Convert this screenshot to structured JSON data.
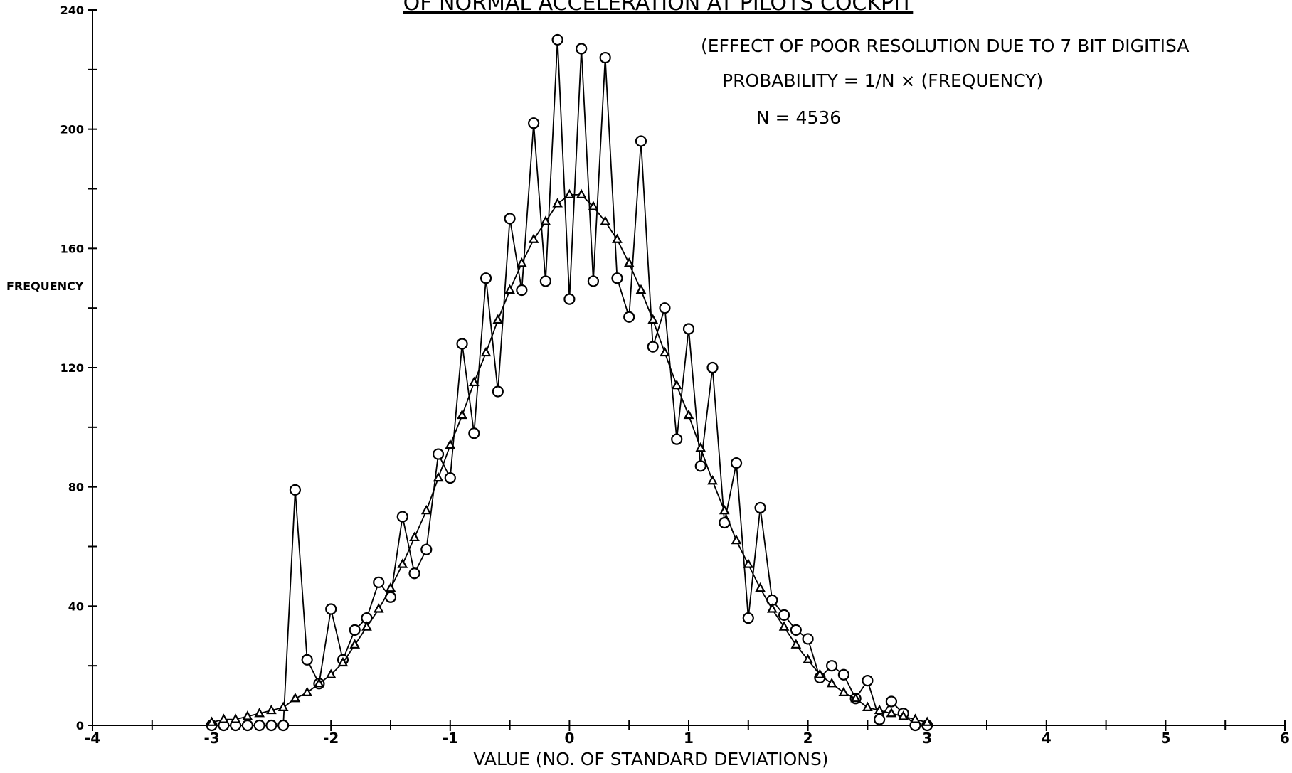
{
  "chart_data": {
    "type": "line",
    "title": "OF NORMAL ACCELERATION AT PILOTS COCKPIT",
    "annotations": [
      "(EFFECT OF POOR RESOLUTION DUE TO 7 BIT DIGITISA",
      "PROBABILITY = 1/N × (FREQUENCY)",
      "N = 4536"
    ],
    "xlabel": "VALUE  (NO. OF STANDARD DEVIATIONS)",
    "ylabel": "FREQUENCY",
    "x": [
      -3,
      -2.9,
      -2.8,
      -2.7,
      -2.6,
      -2.5,
      -2.4,
      -2.3,
      -2.2,
      -2.1,
      -2,
      -1.9,
      -1.8,
      -1.7,
      -1.6,
      -1.5,
      -1.4,
      -1.3,
      -1.2,
      -1.1,
      -1,
      -0.9,
      -0.8,
      -0.7,
      -0.6,
      -0.5,
      -0.4,
      -0.3,
      -0.2,
      -0.1,
      0,
      0.1,
      0.2,
      0.3,
      0.4,
      0.5,
      0.6,
      0.7,
      0.8,
      0.9,
      1,
      1.1,
      1.2,
      1.3,
      1.4,
      1.5,
      1.6,
      1.7,
      1.8,
      1.9,
      2,
      2.1,
      2.2,
      2.3,
      2.4,
      2.5,
      2.6,
      2.7,
      2.8,
      2.9,
      3
    ],
    "series": [
      {
        "marker": "circle",
        "color": "#000000",
        "values": [
          0,
          0,
          0,
          0,
          0,
          0,
          0,
          79,
          22,
          14,
          39,
          22,
          32,
          36,
          48,
          43,
          70,
          51,
          59,
          91,
          83,
          128,
          98,
          150,
          112,
          170,
          146,
          202,
          149,
          230,
          143,
          227,
          149,
          224,
          150,
          137,
          196,
          127,
          140,
          96,
          133,
          87,
          120,
          68,
          88,
          36,
          73,
          42,
          37,
          32,
          29,
          16,
          20,
          17,
          9,
          15,
          2,
          8,
          4,
          0,
          0
        ]
      },
      {
        "marker": "triangle",
        "color": "#000000",
        "values": [
          1,
          2,
          2,
          3,
          4,
          5,
          6,
          9,
          11,
          14,
          17,
          21,
          27,
          33,
          39,
          46,
          54,
          63,
          72,
          83,
          94,
          104,
          115,
          125,
          136,
          146,
          155,
          163,
          169,
          175,
          178,
          178,
          174,
          169,
          163,
          155,
          146,
          136,
          125,
          114,
          104,
          93,
          82,
          72,
          62,
          54,
          46,
          39,
          33,
          27,
          22,
          17,
          14,
          11,
          9,
          6,
          5,
          4,
          3,
          2,
          1
        ]
      }
    ],
    "xlim": [
      -4,
      6
    ],
    "xticks": [
      -4,
      -3,
      -2,
      -1,
      0,
      1,
      2,
      3,
      4,
      5,
      6
    ],
    "xminorticks": [
      -3.5,
      -2.5,
      -1.5,
      -0.5,
      0.5,
      1.5,
      2.5,
      3.5,
      4.5,
      5.5
    ],
    "ylim": [
      0,
      240
    ],
    "yticks": [
      0,
      40,
      80,
      120,
      160,
      200,
      240
    ],
    "yminorticks": [
      20,
      60,
      100,
      140,
      180,
      220
    ],
    "grid": false
  }
}
